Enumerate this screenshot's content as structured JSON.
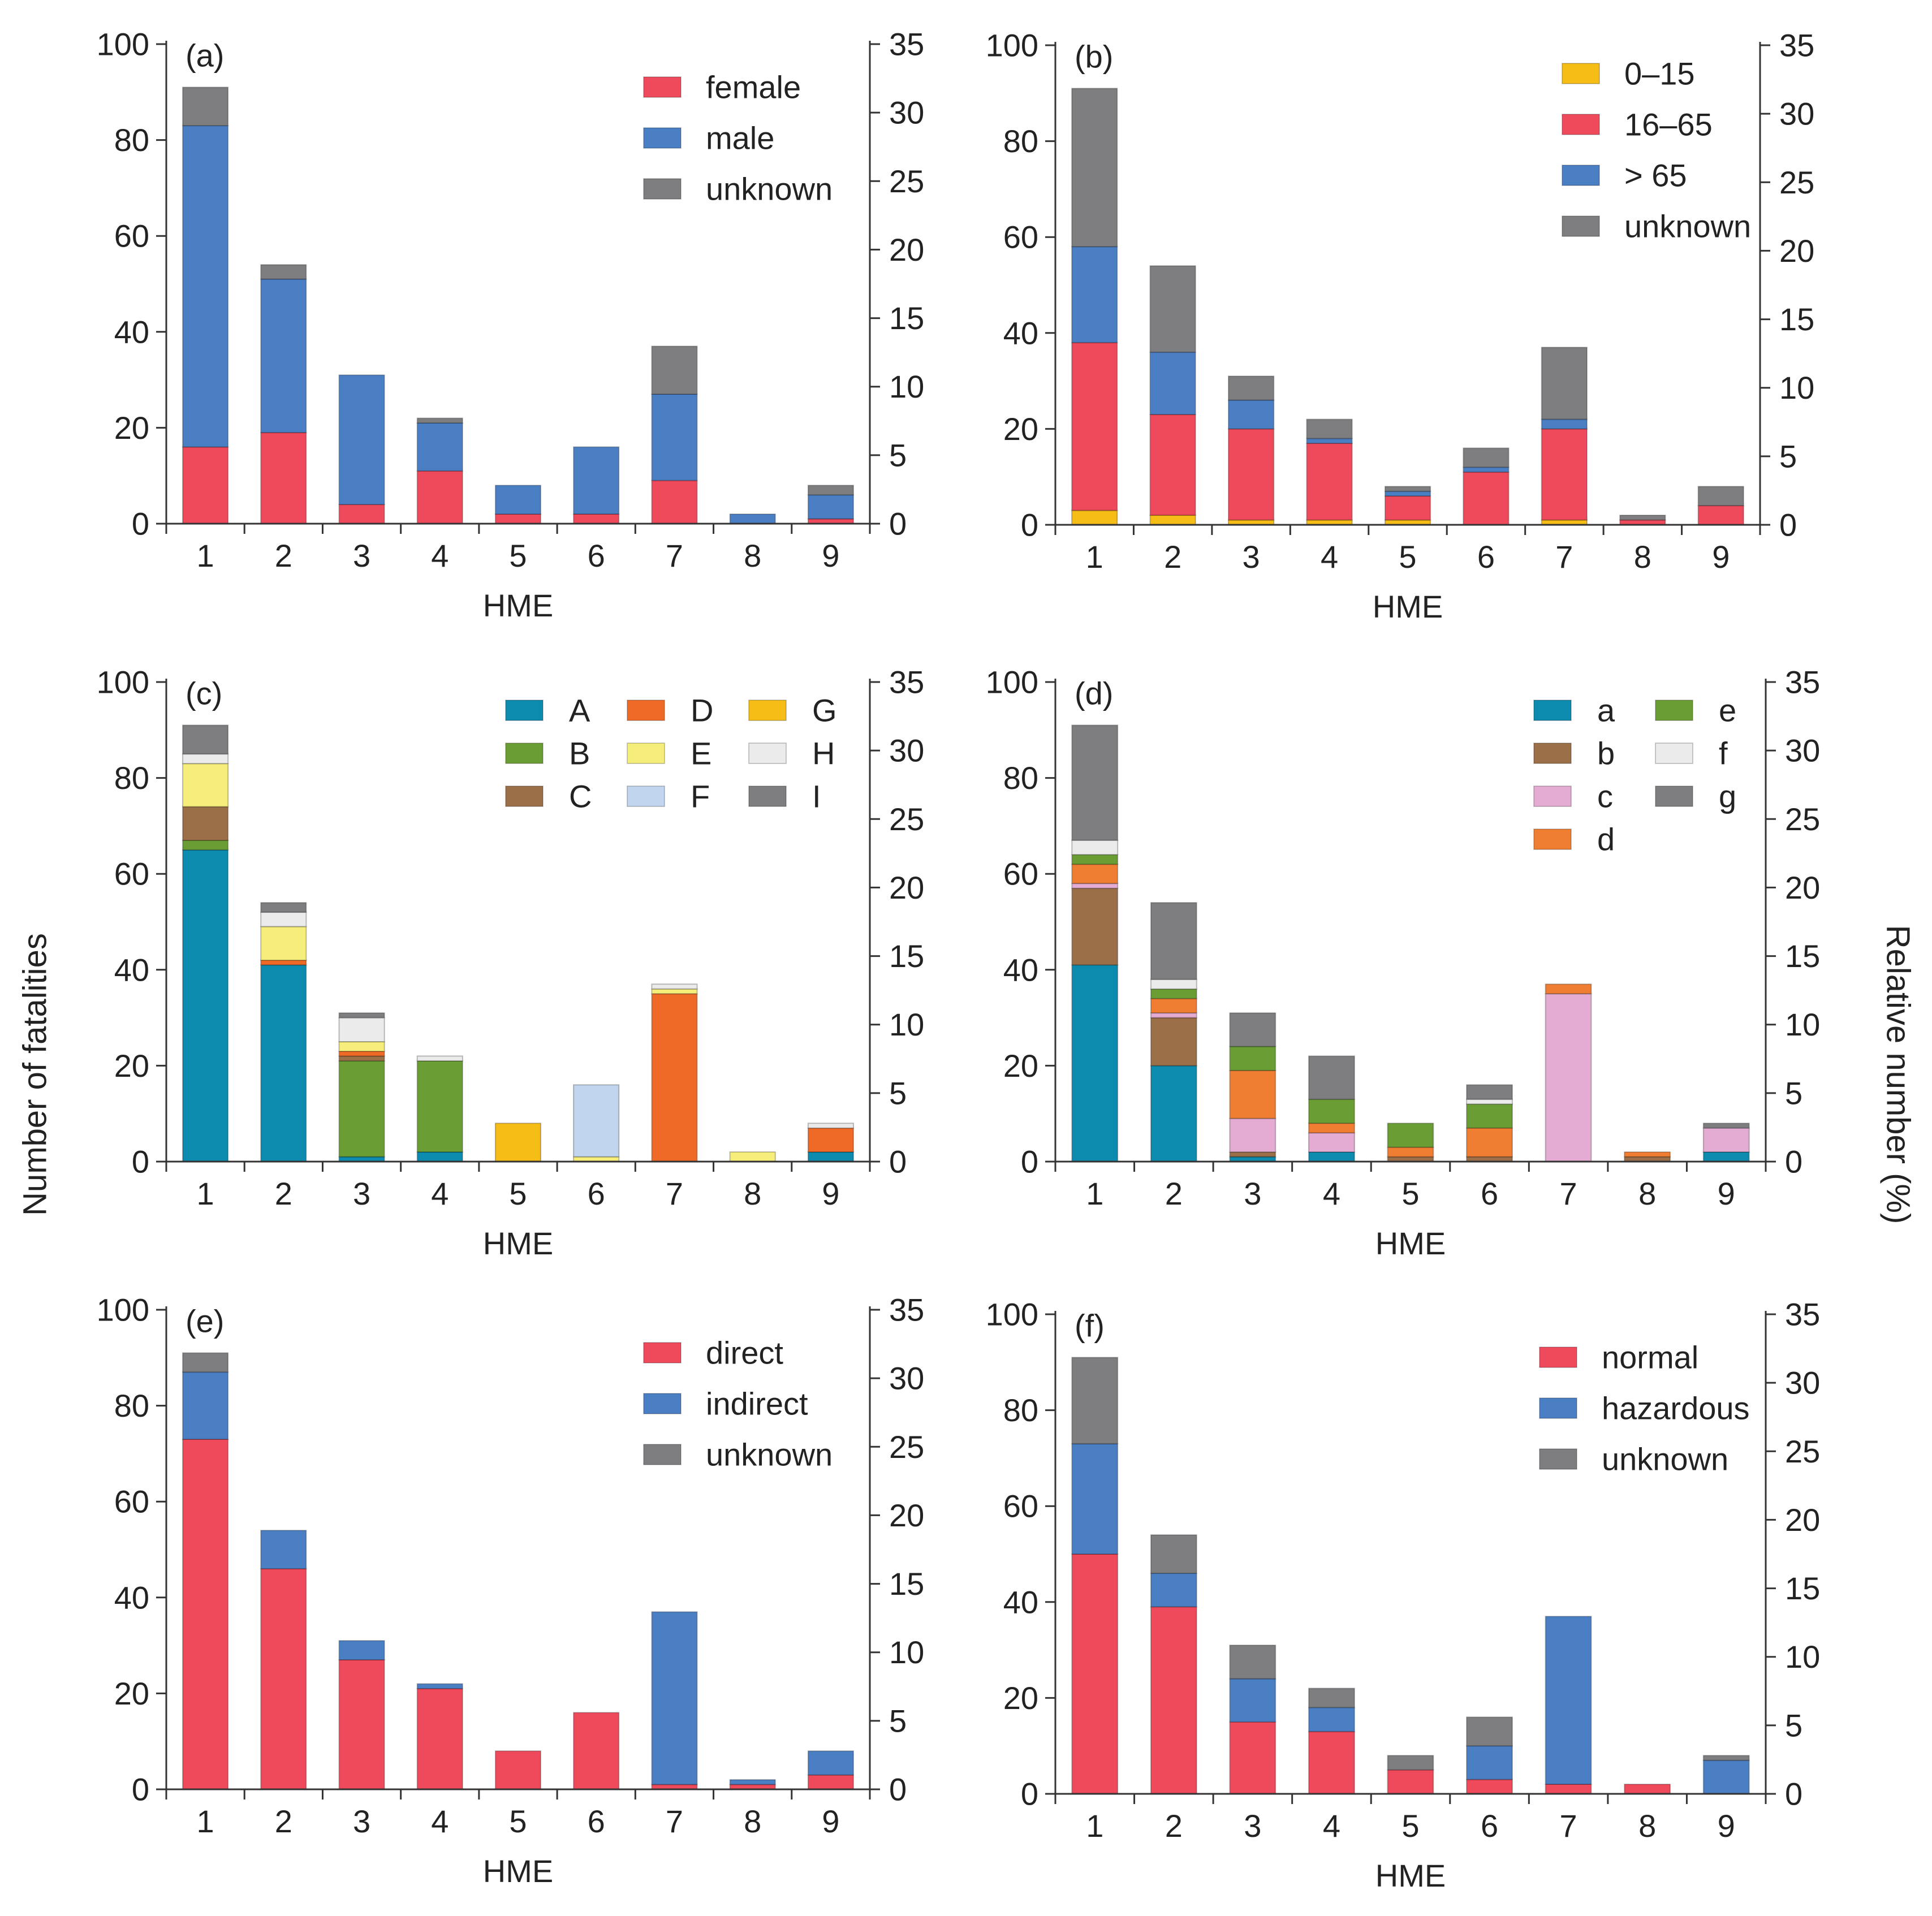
{
  "figure": {
    "y_label_left": "Number of fatalities",
    "y_label_right": "Relative number (%)"
  },
  "chart_data": [
    {
      "id": "a",
      "type": "bar",
      "stacked": true,
      "panel_label": "(a)",
      "categories": [
        "1",
        "2",
        "3",
        "4",
        "5",
        "6",
        "7",
        "8",
        "9"
      ],
      "xlabel": "HME",
      "ylim": [
        0,
        100
      ],
      "y_ticks": [
        "0",
        "20",
        "40",
        "60",
        "80",
        "100"
      ],
      "y2lim": [
        0,
        35
      ],
      "y2_ticks": [
        "0",
        "5",
        "10",
        "15",
        "20",
        "25",
        "30",
        "35"
      ],
      "legend_position": "top-right",
      "legend_columns": 1,
      "series": [
        {
          "name": "female",
          "color": "#ef4a5c",
          "values": [
            16,
            19,
            4,
            11,
            2,
            2,
            9,
            0,
            1
          ]
        },
        {
          "name": "male",
          "color": "#4a7fc4",
          "values": [
            67,
            32,
            27,
            10,
            6,
            14,
            18,
            2,
            5
          ]
        },
        {
          "name": "unknown",
          "color": "#7e7e80",
          "values": [
            8,
            3,
            0,
            1,
            0,
            0,
            10,
            0,
            2
          ]
        }
      ]
    },
    {
      "id": "b",
      "type": "bar",
      "stacked": true,
      "panel_label": "(b)",
      "categories": [
        "1",
        "2",
        "3",
        "4",
        "5",
        "6",
        "7",
        "8",
        "9"
      ],
      "xlabel": "HME",
      "ylim": [
        0,
        100
      ],
      "y_ticks": [
        "0",
        "20",
        "40",
        "60",
        "80",
        "100"
      ],
      "y2lim": [
        0,
        35
      ],
      "y2_ticks": [
        "0",
        "5",
        "10",
        "15",
        "20",
        "25",
        "30",
        "35"
      ],
      "legend_position": "top-right",
      "legend_columns": 1,
      "series": [
        {
          "name": "0–15",
          "color": "#f6bd16",
          "values": [
            3,
            2,
            1,
            1,
            1,
            0,
            1,
            0,
            0
          ]
        },
        {
          "name": "16–65",
          "color": "#ef4a5c",
          "values": [
            35,
            21,
            19,
            16,
            5,
            11,
            19,
            1,
            4
          ]
        },
        {
          "name": "> 65",
          "color": "#4a7fc4",
          "values": [
            20,
            13,
            6,
            1,
            1,
            1,
            2,
            0,
            0
          ]
        },
        {
          "name": "unknown",
          "color": "#7e7e80",
          "values": [
            33,
            18,
            5,
            4,
            1,
            4,
            15,
            1,
            4
          ]
        }
      ]
    },
    {
      "id": "c",
      "type": "bar",
      "stacked": true,
      "panel_label": "(c)",
      "categories": [
        "1",
        "2",
        "3",
        "4",
        "5",
        "6",
        "7",
        "8",
        "9"
      ],
      "xlabel": "HME",
      "ylim": [
        0,
        100
      ],
      "y_ticks": [
        "0",
        "20",
        "40",
        "60",
        "80",
        "100"
      ],
      "y2lim": [
        0,
        35
      ],
      "y2_ticks": [
        "0",
        "5",
        "10",
        "15",
        "20",
        "25",
        "30",
        "35"
      ],
      "legend_position": "top-right",
      "legend_columns": 3,
      "series": [
        {
          "name": "A",
          "color": "#0d8bae",
          "values": [
            65,
            41,
            1,
            2,
            0,
            0,
            0,
            0,
            2
          ]
        },
        {
          "name": "B",
          "color": "#6a9e34",
          "values": [
            2,
            0,
            20,
            19,
            0,
            0,
            0,
            0,
            0
          ]
        },
        {
          "name": "C",
          "color": "#9b6f48",
          "values": [
            7,
            0,
            1,
            0,
            0,
            0,
            0,
            0,
            0
          ]
        },
        {
          "name": "D",
          "color": "#ef6a27",
          "values": [
            0,
            1,
            1,
            0,
            0,
            0,
            35,
            0,
            5
          ]
        },
        {
          "name": "E",
          "color": "#f6ee7a",
          "values": [
            9,
            7,
            2,
            0,
            0,
            1,
            1,
            2,
            0
          ]
        },
        {
          "name": "F",
          "color": "#c1d6ee",
          "values": [
            0,
            0,
            0,
            0,
            0,
            15,
            0,
            0,
            0
          ]
        },
        {
          "name": "G",
          "color": "#f6bd16",
          "values": [
            0,
            0,
            0,
            0,
            8,
            0,
            0,
            0,
            0
          ]
        },
        {
          "name": "H",
          "color": "#ebebeb",
          "values": [
            2,
            3,
            5,
            1,
            0,
            0,
            1,
            0,
            1
          ]
        },
        {
          "name": "I",
          "color": "#7e7e80",
          "values": [
            6,
            2,
            1,
            0,
            0,
            0,
            0,
            0,
            0
          ]
        }
      ]
    },
    {
      "id": "d",
      "type": "bar",
      "stacked": true,
      "panel_label": "(d)",
      "categories": [
        "1",
        "2",
        "3",
        "4",
        "5",
        "6",
        "7",
        "8",
        "9"
      ],
      "xlabel": "HME",
      "ylim": [
        0,
        100
      ],
      "y_ticks": [
        "0",
        "20",
        "40",
        "60",
        "80",
        "100"
      ],
      "y2lim": [
        0,
        35
      ],
      "y2_ticks": [
        "0",
        "5",
        "10",
        "15",
        "20",
        "25",
        "30",
        "35"
      ],
      "legend_position": "top-right",
      "legend_columns": 2,
      "series": [
        {
          "name": "a",
          "color": "#0d8bae",
          "values": [
            41,
            20,
            1,
            2,
            0,
            0,
            0,
            0,
            2
          ]
        },
        {
          "name": "b",
          "color": "#9b6f48",
          "values": [
            16,
            10,
            1,
            0,
            1,
            1,
            0,
            1,
            0
          ]
        },
        {
          "name": "c",
          "color": "#e4acd2",
          "values": [
            1,
            1,
            7,
            4,
            0,
            0,
            35,
            0,
            5
          ]
        },
        {
          "name": "d",
          "color": "#ef7d32",
          "values": [
            4,
            3,
            10,
            2,
            2,
            6,
            2,
            1,
            0
          ]
        },
        {
          "name": "e",
          "color": "#6a9e34",
          "values": [
            2,
            2,
            5,
            5,
            5,
            5,
            0,
            0,
            0
          ]
        },
        {
          "name": "f",
          "color": "#ebebeb",
          "values": [
            3,
            2,
            0,
            0,
            0,
            1,
            0,
            0,
            0
          ]
        },
        {
          "name": "g",
          "color": "#7e7e80",
          "values": [
            24,
            16,
            7,
            9,
            0,
            3,
            0,
            0,
            1
          ]
        }
      ]
    },
    {
      "id": "e",
      "type": "bar",
      "stacked": true,
      "panel_label": "(e)",
      "categories": [
        "1",
        "2",
        "3",
        "4",
        "5",
        "6",
        "7",
        "8",
        "9"
      ],
      "xlabel": "HME",
      "ylim": [
        0,
        100
      ],
      "y_ticks": [
        "0",
        "20",
        "40",
        "60",
        "80",
        "100"
      ],
      "y2lim": [
        0,
        35
      ],
      "y2_ticks": [
        "0",
        "5",
        "10",
        "15",
        "20",
        "25",
        "30",
        "35"
      ],
      "legend_position": "top-right",
      "legend_columns": 1,
      "series": [
        {
          "name": "direct",
          "color": "#ef4a5c",
          "values": [
            73,
            46,
            27,
            21,
            8,
            16,
            1,
            1,
            3
          ]
        },
        {
          "name": "indirect",
          "color": "#4a7fc4",
          "values": [
            14,
            8,
            4,
            1,
            0,
            0,
            36,
            1,
            5
          ]
        },
        {
          "name": "unknown",
          "color": "#7e7e80",
          "values": [
            4,
            0,
            0,
            0,
            0,
            0,
            0,
            0,
            0
          ]
        }
      ]
    },
    {
      "id": "f",
      "type": "bar",
      "stacked": true,
      "panel_label": "(f)",
      "categories": [
        "1",
        "2",
        "3",
        "4",
        "5",
        "6",
        "7",
        "8",
        "9"
      ],
      "xlabel": "HME",
      "ylim": [
        0,
        100
      ],
      "y_ticks": [
        "0",
        "20",
        "40",
        "60",
        "80",
        "100"
      ],
      "y2lim": [
        0,
        35
      ],
      "y2_ticks": [
        "0",
        "5",
        "10",
        "15",
        "20",
        "25",
        "30",
        "35"
      ],
      "legend_position": "top-right",
      "legend_columns": 1,
      "series": [
        {
          "name": "normal",
          "color": "#ef4a5c",
          "values": [
            50,
            39,
            15,
            13,
            5,
            3,
            2,
            2,
            0
          ]
        },
        {
          "name": "hazardous",
          "color": "#4a7fc4",
          "values": [
            23,
            7,
            9,
            5,
            0,
            7,
            35,
            0,
            7
          ]
        },
        {
          "name": "unknown",
          "color": "#7e7e80",
          "values": [
            18,
            8,
            7,
            4,
            3,
            6,
            0,
            0,
            1
          ]
        }
      ]
    }
  ]
}
